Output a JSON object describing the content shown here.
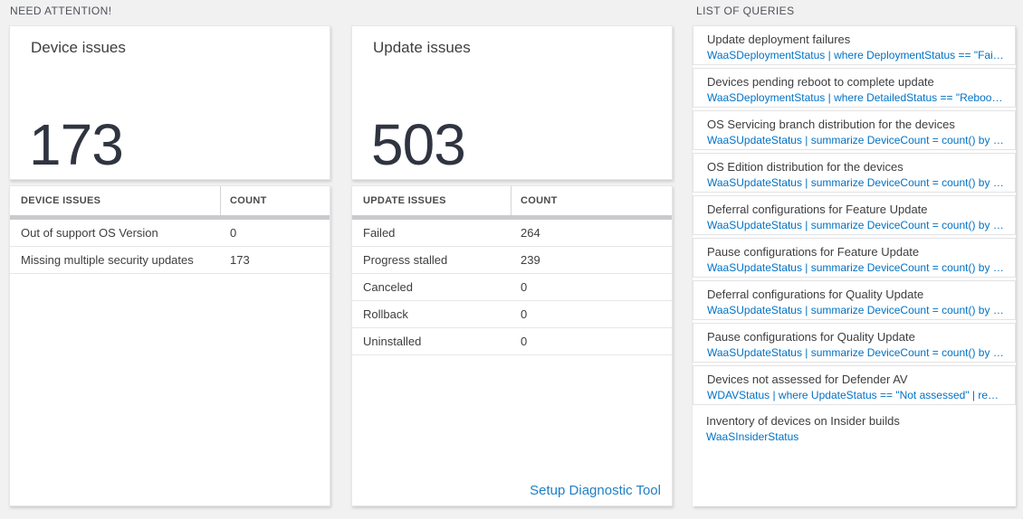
{
  "labels": {
    "need_attention": "NEED ATTENTION!",
    "list_of_queries": "LIST OF QUERIES"
  },
  "device_card": {
    "title": "Device issues",
    "count": "173",
    "table": {
      "headers": [
        "DEVICE ISSUES",
        "COUNT"
      ],
      "rows": [
        {
          "label": "Out of support OS Version",
          "count": "0"
        },
        {
          "label": "Missing multiple security updates",
          "count": "173"
        }
      ]
    }
  },
  "update_card": {
    "title": "Update issues",
    "count": "503",
    "table": {
      "headers": [
        "UPDATE ISSUES",
        "COUNT"
      ],
      "rows": [
        {
          "label": "Failed",
          "count": "264"
        },
        {
          "label": "Progress stalled",
          "count": "239"
        },
        {
          "label": "Canceled",
          "count": "0"
        },
        {
          "label": "Rollback",
          "count": "0"
        },
        {
          "label": "Uninstalled",
          "count": "0"
        }
      ]
    },
    "footer_link": "Setup Diagnostic Tool"
  },
  "queries": [
    {
      "title": "Update deployment failures",
      "query": "WaaSDeploymentStatus | where DeploymentStatus == \"Failed\" |..."
    },
    {
      "title": "Devices pending reboot to complete update",
      "query": "WaaSDeploymentStatus | where DetailedStatus == \"Reboot pend..."
    },
    {
      "title": "OS Servicing branch distribution for the devices",
      "query": "WaaSUpdateStatus | summarize DeviceCount = count() by OSSer..."
    },
    {
      "title": "OS Edition distribution for the devices",
      "query": "WaaSUpdateStatus | summarize DeviceCount = count() by OSEdit..."
    },
    {
      "title": "Deferral configurations for Feature Update",
      "query": "WaaSUpdateStatus | summarize DeviceCount = count() by Featur..."
    },
    {
      "title": "Pause configurations for Feature Update",
      "query": "WaaSUpdateStatus | summarize DeviceCount = count() by Featur..."
    },
    {
      "title": "Deferral configurations for Quality Update",
      "query": "WaaSUpdateStatus | summarize DeviceCount = count() by Qualit..."
    },
    {
      "title": "Pause configurations for Quality Update",
      "query": "WaaSUpdateStatus | summarize DeviceCount = count() by Qualit..."
    },
    {
      "title": "Devices not assessed for Defender AV",
      "query": "WDAVStatus | where UpdateStatus == \"Not assessed\" | render ta..."
    },
    {
      "title": "Inventory of devices on Insider builds",
      "query": "WaaSInsiderStatus"
    }
  ],
  "colors": {
    "page_bg": "#f1f1f2",
    "query_blue": "#0072c6",
    "link_blue": "#2180c4",
    "number_dark": "#2f3440",
    "gray_bar": "#c9cacc"
  }
}
